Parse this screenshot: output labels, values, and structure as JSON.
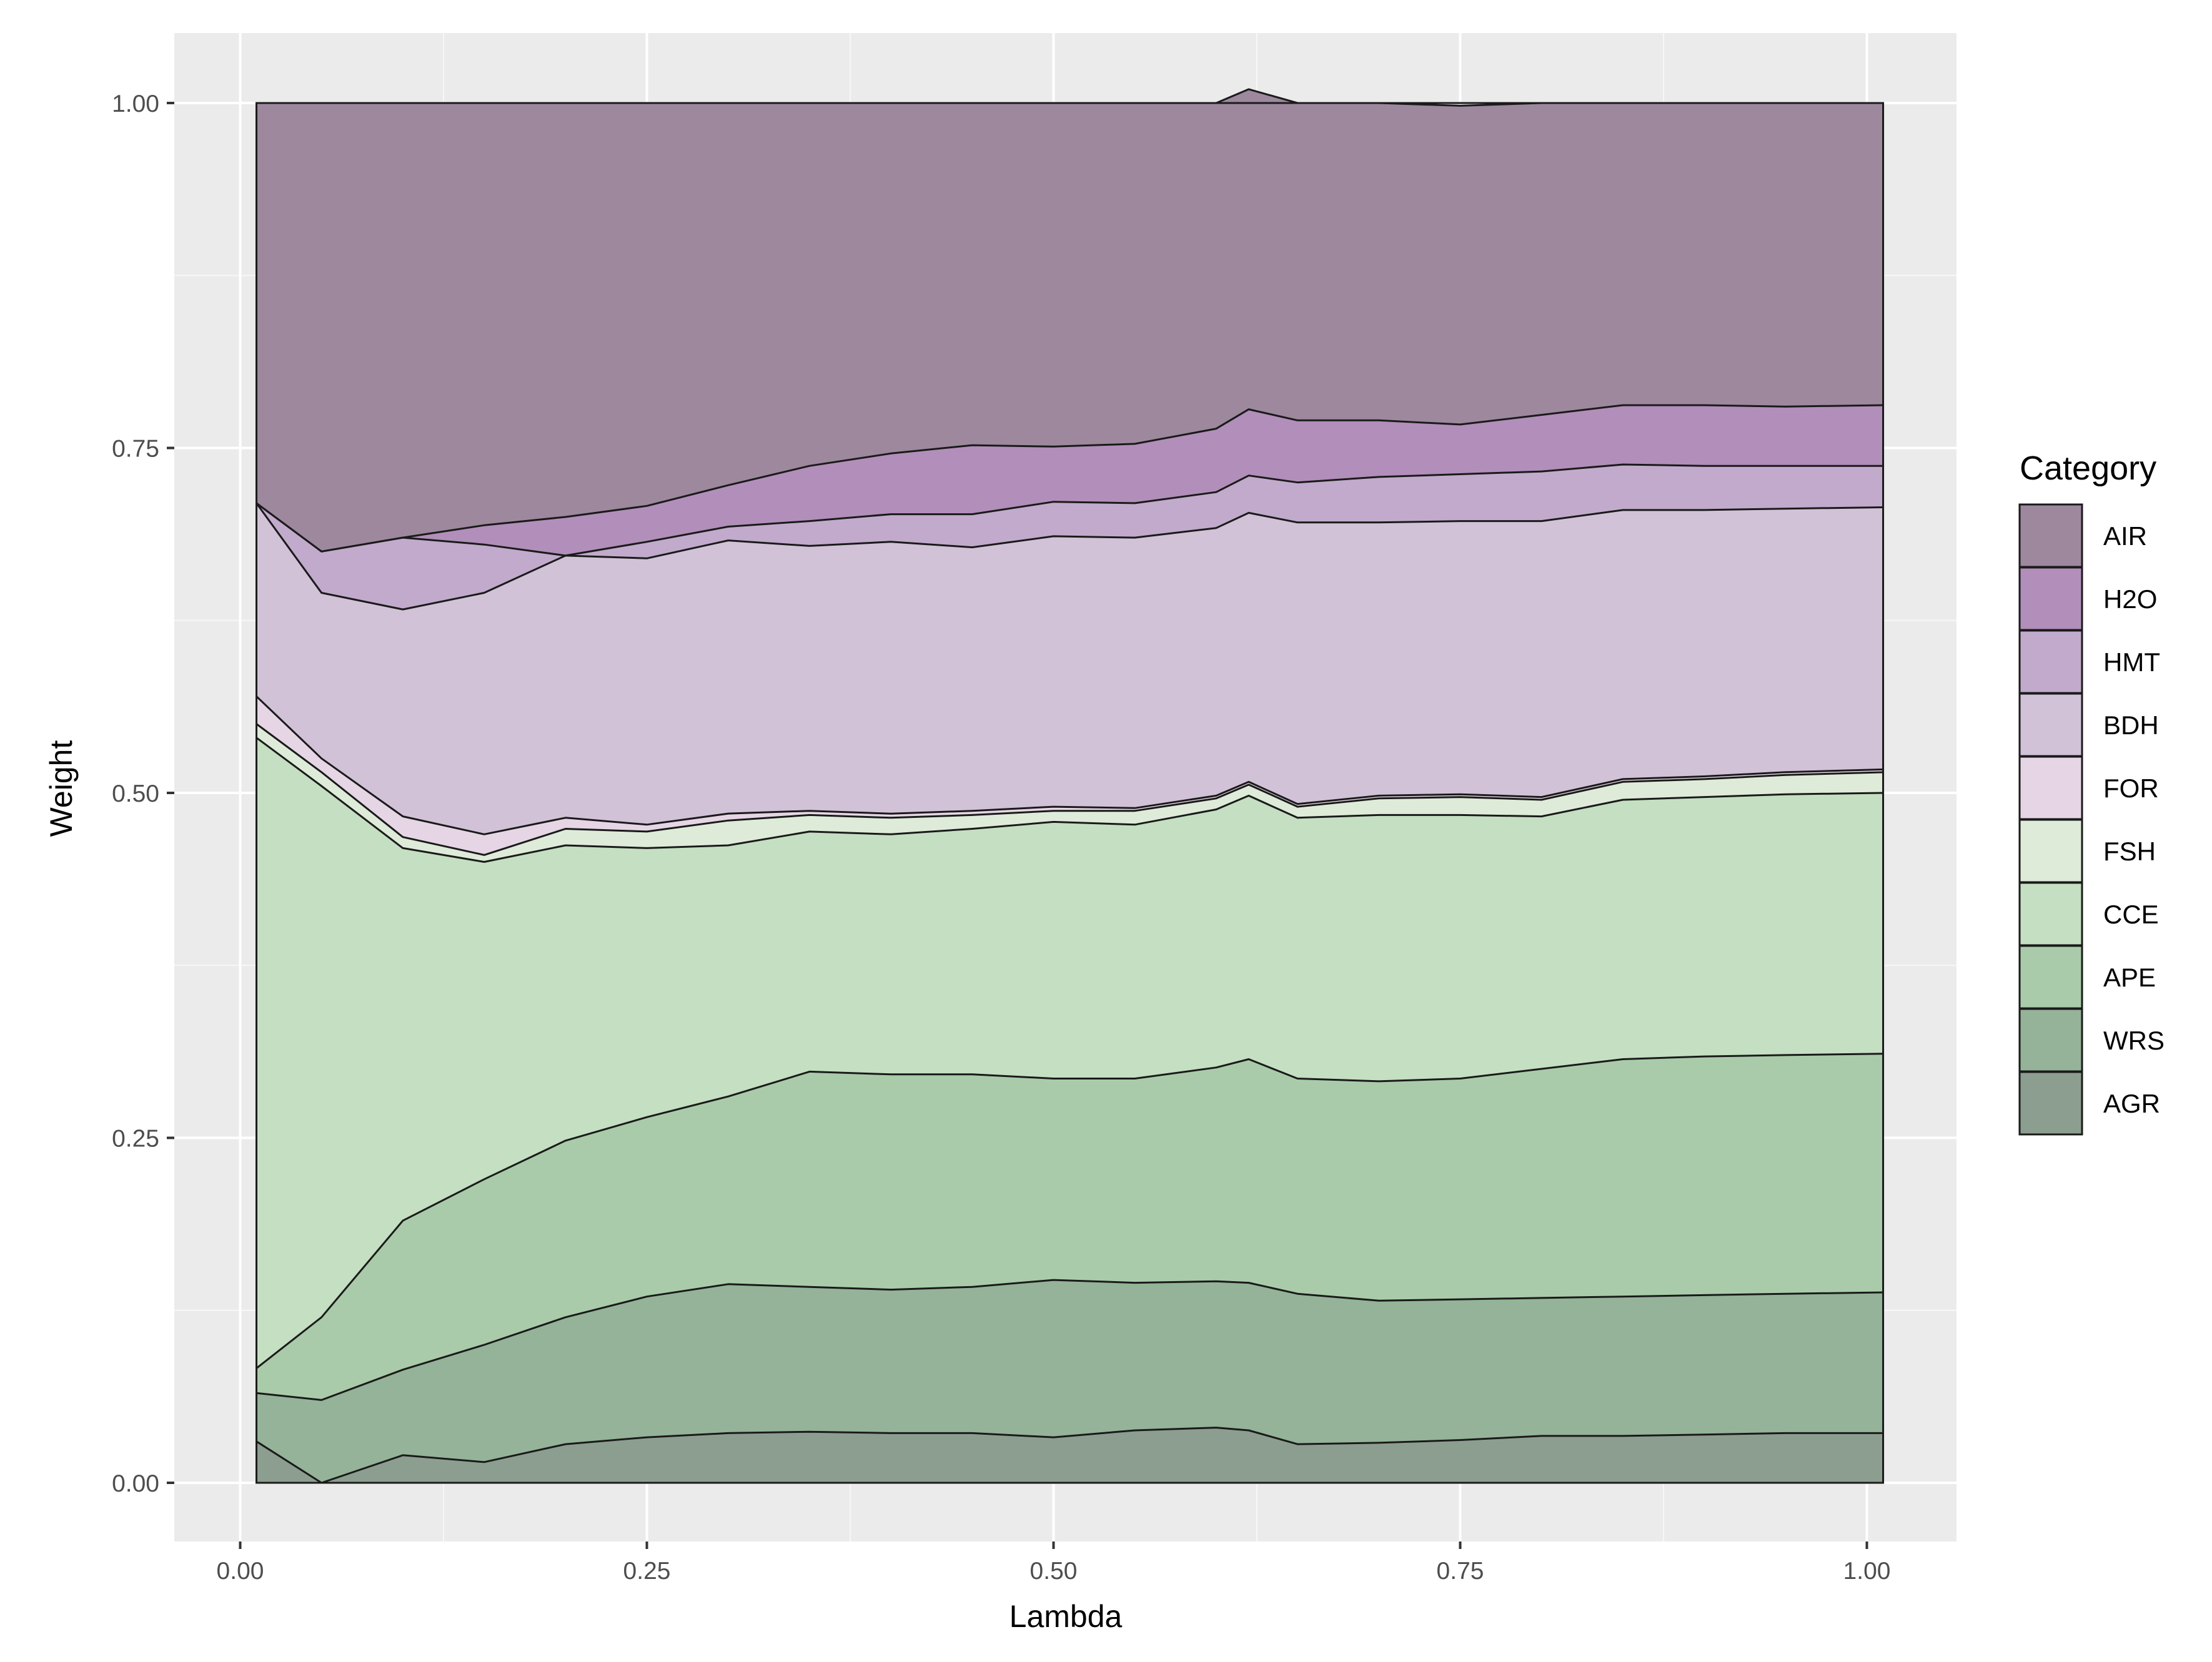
{
  "chart_data": {
    "type": "area",
    "stacked": true,
    "xlabel": "Lambda",
    "ylabel": "Weight",
    "xlim": [
      0.0,
      1.0
    ],
    "ylim": [
      0.0,
      1.0
    ],
    "x_ticks": [
      "0.00",
      "0.25",
      "0.50",
      "0.75",
      "1.00"
    ],
    "y_ticks": [
      "0.00",
      "0.25",
      "0.50",
      "0.75",
      "1.00"
    ],
    "grid": true,
    "legend": {
      "title": "Category",
      "position": "right",
      "entries": [
        "AIR",
        "H2O",
        "HMT",
        "BDH",
        "FOR",
        "FSH",
        "CCE",
        "APE",
        "WRS",
        "AGR"
      ]
    },
    "x": [
      0.01,
      0.05,
      0.1,
      0.15,
      0.2,
      0.25,
      0.3,
      0.35,
      0.4,
      0.45,
      0.5,
      0.55,
      0.6,
      0.62,
      0.65,
      0.7,
      0.75,
      0.8,
      0.85,
      0.9,
      0.95,
      1.01
    ],
    "series": [
      {
        "name": "AGR",
        "color": "#8c9e8f",
        "values": [
          0.03,
          0.0,
          0.02,
          0.015,
          0.028,
          0.033,
          0.036,
          0.037,
          0.036,
          0.036,
          0.033,
          0.038,
          0.04,
          0.038,
          0.028,
          0.029,
          0.031,
          0.034,
          0.034,
          0.035,
          0.036,
          0.036
        ]
      },
      {
        "name": "WRS",
        "color": "#94b398",
        "values": [
          0.035,
          0.06,
          0.062,
          0.085,
          0.092,
          0.102,
          0.108,
          0.105,
          0.104,
          0.106,
          0.114,
          0.107,
          0.106,
          0.107,
          0.109,
          0.103,
          0.102,
          0.1,
          0.101,
          0.101,
          0.101,
          0.102
        ]
      },
      {
        "name": "APE",
        "color": "#a9cba9",
        "values": [
          0.018,
          0.06,
          0.108,
          0.12,
          0.128,
          0.13,
          0.136,
          0.156,
          0.156,
          0.154,
          0.146,
          0.148,
          0.155,
          0.162,
          0.156,
          0.159,
          0.16,
          0.166,
          0.172,
          0.173,
          0.173,
          0.173
        ]
      },
      {
        "name": "CCE",
        "color": "#c4dfc1",
        "values": [
          0.457,
          0.385,
          0.27,
          0.23,
          0.214,
          0.195,
          0.182,
          0.174,
          0.174,
          0.178,
          0.186,
          0.184,
          0.187,
          0.191,
          0.189,
          0.193,
          0.191,
          0.183,
          0.188,
          0.188,
          0.189,
          0.189
        ]
      },
      {
        "name": "FSH",
        "color": "#deebd9",
        "values": [
          0.01,
          0.01,
          0.008,
          0.005,
          0.012,
          0.012,
          0.018,
          0.012,
          0.012,
          0.01,
          0.008,
          0.01,
          0.008,
          0.008,
          0.008,
          0.012,
          0.013,
          0.012,
          0.013,
          0.013,
          0.014,
          0.015
        ]
      },
      {
        "name": "FOR",
        "color": "#e6d6e5",
        "values": [
          0.02,
          0.01,
          0.015,
          0.015,
          0.008,
          0.005,
          0.005,
          0.003,
          0.003,
          0.003,
          0.003,
          0.002,
          0.002,
          0.002,
          0.002,
          0.002,
          0.002,
          0.002,
          0.002,
          0.002,
          0.002,
          0.002
        ]
      },
      {
        "name": "BDH",
        "color": "#d1c2d8",
        "values": [
          0.14,
          0.12,
          0.15,
          0.175,
          0.19,
          0.193,
          0.198,
          0.192,
          0.197,
          0.191,
          0.196,
          0.196,
          0.194,
          0.195,
          0.204,
          0.198,
          0.198,
          0.2,
          0.195,
          0.193,
          0.191,
          0.19
        ]
      },
      {
        "name": "HMT",
        "color": "#c1aacb",
        "values": [
          0.0,
          0.03,
          0.052,
          0.035,
          0.0,
          0.012,
          0.01,
          0.018,
          0.02,
          0.024,
          0.025,
          0.025,
          0.026,
          0.027,
          0.029,
          0.033,
          0.034,
          0.036,
          0.033,
          0.032,
          0.031,
          0.03
        ]
      },
      {
        "name": "H2O",
        "color": "#b28eba",
        "values": [
          0.0,
          0.0,
          0.0,
          0.014,
          0.028,
          0.026,
          0.03,
          0.04,
          0.044,
          0.05,
          0.04,
          0.043,
          0.046,
          0.048,
          0.045,
          0.041,
          0.036,
          0.041,
          0.043,
          0.044,
          0.043,
          0.044
        ]
      },
      {
        "name": "AIR",
        "color": "#9d889e",
        "values": [
          0.29,
          0.325,
          0.315,
          0.306,
          0.3,
          0.292,
          0.277,
          0.263,
          0.254,
          0.248,
          0.249,
          0.247,
          0.236,
          0.232,
          0.23,
          0.23,
          0.231,
          0.226,
          0.219,
          0.219,
          0.22,
          0.219
        ]
      }
    ]
  }
}
